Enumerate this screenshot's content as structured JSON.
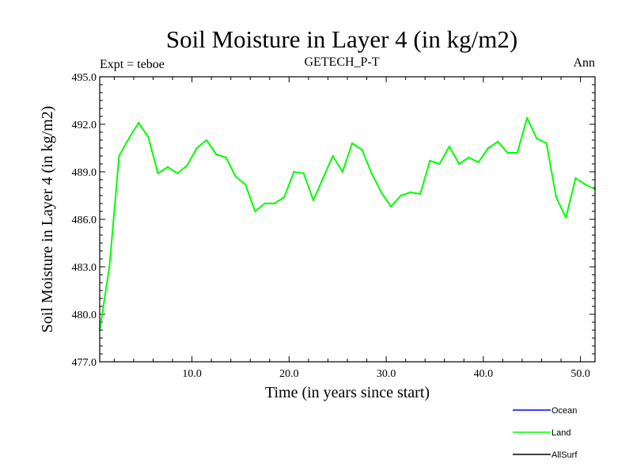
{
  "chart_data": {
    "type": "line",
    "title": "Soil Moisture in Layer 4 (in kg/m2)",
    "subtitle": "GETECH_P-T",
    "left_label": "Expt = teboe",
    "right_label": "Ann",
    "xlabel": "Time (in years since start)",
    "ylabel": "Soil Moisture in Layer 4 (in kg/m2)",
    "xlim": [
      0.5,
      51.5
    ],
    "ylim": [
      477.0,
      495.0
    ],
    "x_ticks": [
      10,
      20,
      30,
      40,
      50
    ],
    "x_tick_labels": [
      "10.0",
      "20.0",
      "30.0",
      "40.0",
      "50.0"
    ],
    "y_ticks": [
      477,
      480,
      483,
      486,
      489,
      492,
      495
    ],
    "y_tick_labels": [
      "477.0",
      "480.0",
      "483.0",
      "486.0",
      "489.0",
      "492.0",
      "495.0"
    ],
    "series": [
      {
        "name": "Land",
        "color": "#00ff00",
        "x": [
          0.5,
          1.5,
          2.5,
          3.5,
          4.5,
          5.5,
          6.5,
          7.5,
          8.5,
          9.5,
          10.5,
          11.5,
          12.5,
          13.5,
          14.5,
          15.5,
          16.5,
          17.5,
          18.5,
          19.5,
          20.5,
          21.5,
          22.5,
          23.5,
          24.5,
          25.5,
          26.5,
          27.5,
          28.5,
          29.5,
          30.5,
          31.5,
          32.5,
          33.5,
          34.5,
          35.5,
          36.5,
          37.5,
          38.5,
          39.5,
          40.5,
          41.5,
          42.5,
          43.5,
          44.5,
          45.5,
          46.5,
          47.5,
          48.5,
          49.5,
          50.5,
          51.5
        ],
        "values": [
          479.0,
          483.0,
          490.0,
          491.1,
          492.1,
          491.2,
          488.9,
          489.3,
          488.9,
          489.4,
          490.5,
          491.0,
          490.1,
          489.9,
          488.7,
          488.2,
          486.5,
          487.0,
          487.0,
          487.4,
          489.0,
          488.9,
          487.2,
          488.6,
          490.0,
          489.0,
          490.8,
          490.4,
          488.9,
          487.7,
          486.8,
          487.5,
          487.7,
          487.6,
          489.7,
          489.5,
          490.6,
          489.5,
          489.9,
          489.6,
          490.5,
          490.9,
          490.2,
          490.2,
          492.4,
          491.1,
          490.8,
          487.4,
          486.1,
          488.6,
          488.2,
          487.9
        ]
      }
    ],
    "legend": {
      "placement": "bottom-right",
      "entries": [
        {
          "name": "Ocean",
          "color": "#0000ff"
        },
        {
          "name": "Land",
          "color": "#00ff00"
        },
        {
          "name": "AllSurf",
          "color": "#000000"
        }
      ]
    }
  }
}
